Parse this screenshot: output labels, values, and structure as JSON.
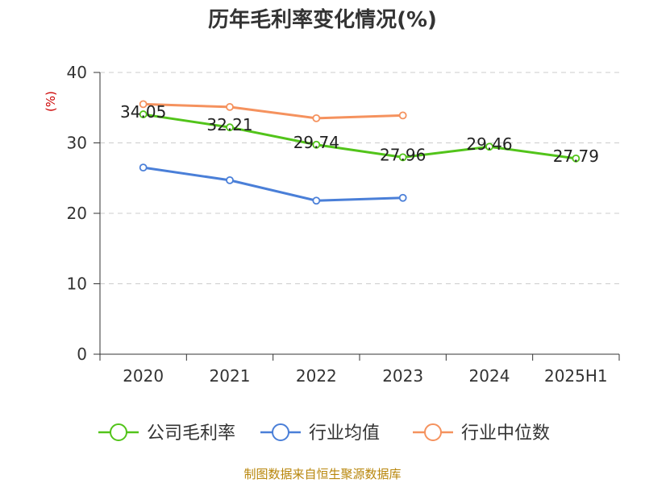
{
  "chart_data": {
    "type": "line",
    "title": "历年毛利率变化情况(%)",
    "unit_label": "(%)",
    "categories": [
      "2020",
      "2021",
      "2022",
      "2023",
      "2024",
      "2025H1"
    ],
    "yticks": [
      "0",
      "10",
      "20",
      "30",
      "40"
    ],
    "ylim": [
      0,
      40
    ],
    "grid": true,
    "legend_position": "bottom",
    "series": [
      {
        "name": "公司毛利率",
        "color": "#52c41a",
        "values": [
          34.05,
          32.21,
          29.74,
          27.96,
          29.46,
          27.79
        ],
        "labels": [
          "34.05",
          "32.21",
          "29.74",
          "27.96",
          "29.46",
          "27.79"
        ]
      },
      {
        "name": "行业均值",
        "color": "#4a7fd8",
        "values": [
          26.5,
          24.7,
          21.8,
          22.2,
          null,
          null
        ]
      },
      {
        "name": "行业中位数",
        "color": "#f5925e",
        "values": [
          35.5,
          35.1,
          33.5,
          33.9,
          null,
          null
        ]
      }
    ]
  },
  "source": "制图数据来自恒生聚源数据库"
}
